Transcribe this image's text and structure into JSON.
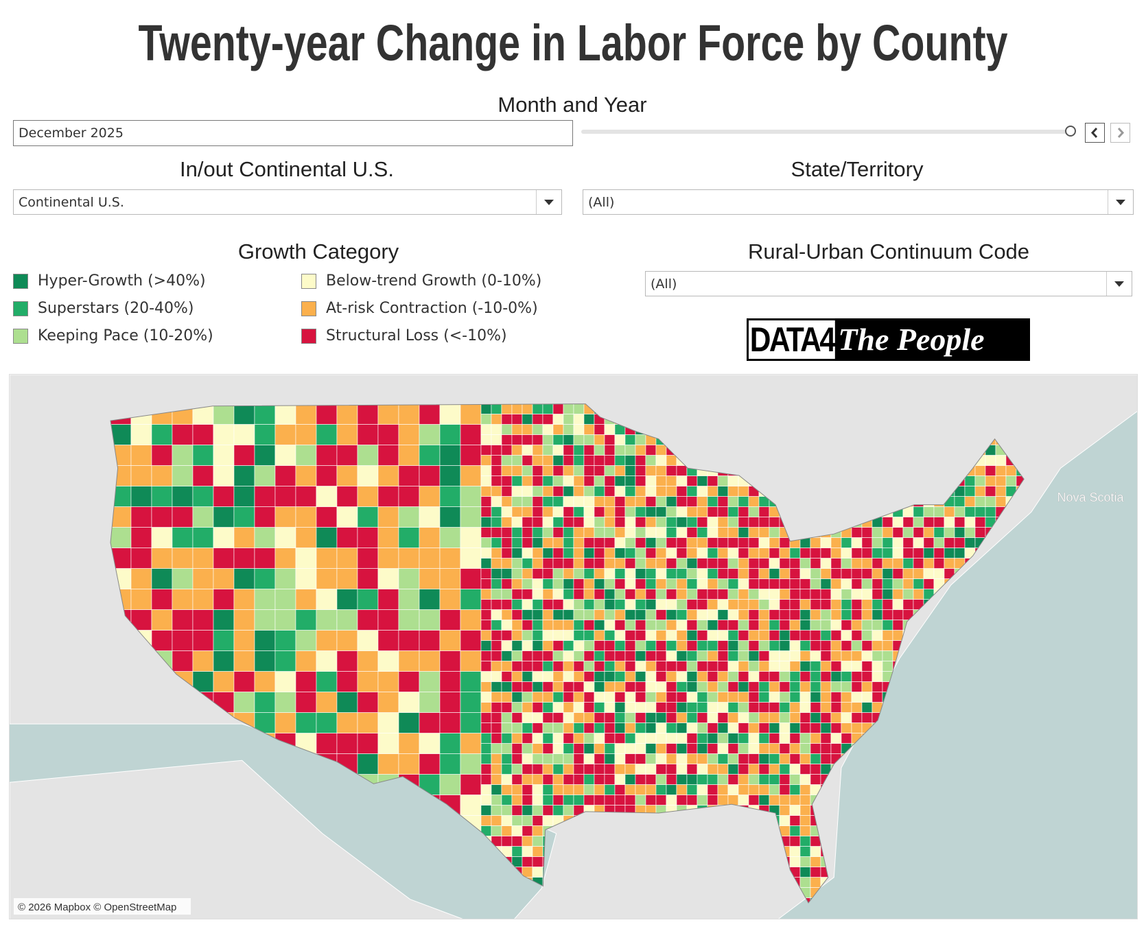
{
  "title": "Twenty-year Change in Labor Force by County",
  "filters": {
    "month_year": {
      "label": "Month and Year",
      "value": "December 2025"
    },
    "continental": {
      "label": "In/out Continental U.S.",
      "value": "Continental U.S."
    },
    "state": {
      "label": "State/Territory",
      "value": "(All)"
    },
    "rucc": {
      "label": "Rural-Urban Continuum Code",
      "value": "(All)"
    }
  },
  "legend": {
    "title": "Growth Category",
    "items": [
      {
        "label": "Hyper-Growth (>40%)",
        "color": "#0f8a57"
      },
      {
        "label": "Superstars (20-40%)",
        "color": "#22ad68"
      },
      {
        "label": "Keeping Pace (10-20%)",
        "color": "#addf90"
      },
      {
        "label": "Below-trend Growth (0-10%)",
        "color": "#fdfbc9"
      },
      {
        "label": "At-risk Contraction (-10-0%)",
        "color": "#fbb04d"
      },
      {
        "label": "Structural Loss (<-10%)",
        "color": "#d7133f"
      }
    ]
  },
  "logo": {
    "left": "DATA4",
    "right": "The People"
  },
  "map": {
    "labels": [
      "Nova Scotia"
    ],
    "attribution": "© 2026 Mapbox © OpenStreetMap"
  }
}
